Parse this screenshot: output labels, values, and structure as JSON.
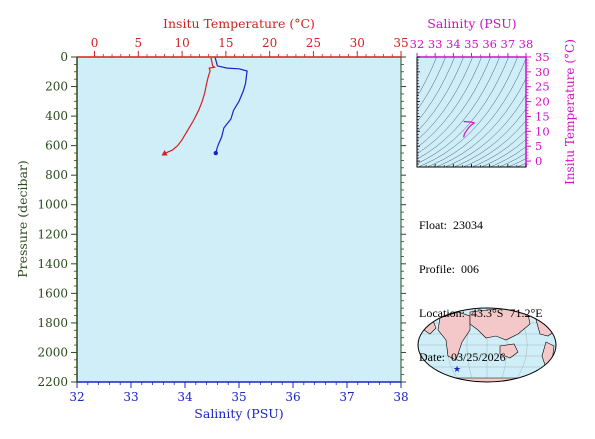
{
  "colors": {
    "temperature": "#d42020",
    "salinity": "#1a23c8",
    "pressure_axis": "#2b4a1f",
    "inset_axis": "#d010c8",
    "plot_bg": "#d0eef8",
    "land": "#f4c8c8",
    "ocean": "#d0eef8"
  },
  "chart_data": [
    {
      "type": "line",
      "title": "",
      "top_axis": {
        "label": "Insitu Temperature (°C)",
        "range": [
          -2,
          35
        ],
        "ticks": [
          0,
          5,
          10,
          15,
          20,
          25,
          30,
          35
        ]
      },
      "bottom_axis": {
        "label": "Salinity (PSU)",
        "range": [
          32,
          38
        ],
        "ticks": [
          32,
          33,
          34,
          35,
          36,
          37,
          38
        ]
      },
      "y_axis": {
        "label": "Pressure (decibar)",
        "range": [
          0,
          2200
        ],
        "inverted": true,
        "ticks": [
          0,
          200,
          400,
          600,
          800,
          1000,
          1200,
          1400,
          1600,
          1800,
          2000,
          2200
        ]
      },
      "grid": false,
      "series": [
        {
          "axis": "top",
          "color": "temperature",
          "points": [
            [
              13.3,
              5
            ],
            [
              13.5,
              60
            ],
            [
              13.7,
              70
            ],
            [
              13.1,
              75
            ],
            [
              13.2,
              95
            ],
            [
              13.0,
              130
            ],
            [
              12.8,
              180
            ],
            [
              12.6,
              240
            ],
            [
              12.3,
              300
            ],
            [
              11.9,
              360
            ],
            [
              11.3,
              430
            ],
            [
              10.6,
              500
            ],
            [
              10.0,
              560
            ],
            [
              9.5,
              600
            ],
            [
              8.9,
              630
            ],
            [
              8.3,
              645
            ],
            [
              8.1,
              650
            ],
            [
              8.0,
              650
            ]
          ],
          "end_marker": "triangle"
        },
        {
          "axis": "bottom",
          "color": "salinity",
          "points": [
            [
              34.56,
              5
            ],
            [
              34.6,
              60
            ],
            [
              34.78,
              75
            ],
            [
              35.0,
              80
            ],
            [
              35.15,
              95
            ],
            [
              35.12,
              180
            ],
            [
              35.08,
              230
            ],
            [
              35.0,
              300
            ],
            [
              34.9,
              360
            ],
            [
              34.85,
              420
            ],
            [
              34.72,
              480
            ],
            [
              34.68,
              540
            ],
            [
              34.62,
              590
            ],
            [
              34.59,
              620
            ],
            [
              34.58,
              645
            ],
            [
              34.57,
              650
            ]
          ],
          "end_marker": "circle"
        }
      ]
    },
    {
      "type": "scatter",
      "title": "",
      "x_axis": {
        "label": "Salinity (PSU)",
        "range": [
          32,
          38
        ],
        "ticks": [
          32,
          33,
          34,
          35,
          36,
          37,
          38
        ]
      },
      "y_axis": {
        "label": "Insitu Temperature (°C)",
        "range": [
          -2,
          35
        ],
        "ticks": [
          0,
          5,
          10,
          15,
          20,
          25,
          30,
          35
        ]
      },
      "isopycnals": true,
      "series": [
        {
          "color": "inset_axis",
          "points": [
            [
              34.57,
              13.3
            ],
            [
              35.0,
              13.1
            ],
            [
              35.15,
              12.8
            ],
            [
              35.0,
              12.2
            ],
            [
              34.85,
              11.3
            ],
            [
              34.7,
              10.0
            ],
            [
              34.6,
              8.9
            ],
            [
              34.57,
              8.0
            ]
          ]
        }
      ]
    }
  ],
  "info": {
    "float": "Float:  23034",
    "profile": "Profile:  006",
    "location": "Location:  43.3°S  71.2°E",
    "date": "Date:  03/25/2026"
  },
  "map": {
    "float_marker": "★"
  }
}
